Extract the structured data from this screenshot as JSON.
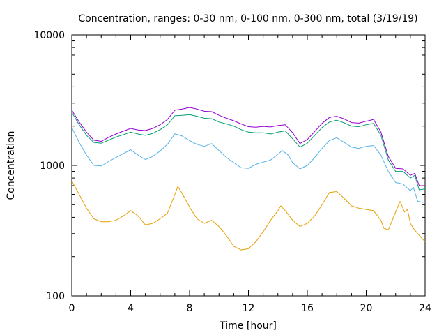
{
  "chart_data": {
    "type": "line",
    "title": "Concentration, ranges: 0-30 nm, 0-100 nm, 0-300 nm, total (3/19/19)",
    "xlabel": "Time [hour]",
    "ylabel": "Concentration",
    "xlim": [
      0,
      24
    ],
    "ylim": [
      100,
      10000
    ],
    "yscale": "log",
    "grid": false,
    "legend": "none",
    "x_ticks": [
      0,
      4,
      8,
      12,
      16,
      20,
      24
    ],
    "x_tick_labels": [
      "0",
      "4",
      "8",
      "12",
      "16",
      "20",
      "24"
    ],
    "y_ticks": [
      100,
      1000,
      10000
    ],
    "y_tick_labels": [
      "100",
      "1000",
      "10000"
    ],
    "series": [
      {
        "color": "#e69f00",
        "points": [
          [
            0,
            760
          ],
          [
            0.5,
            600
          ],
          [
            1,
            470
          ],
          [
            1.5,
            390
          ],
          [
            2,
            370
          ],
          [
            2.5,
            370
          ],
          [
            3,
            380
          ],
          [
            3.5,
            410
          ],
          [
            4,
            450
          ],
          [
            4.5,
            410
          ],
          [
            5,
            350
          ],
          [
            5.5,
            360
          ],
          [
            6,
            390
          ],
          [
            6.5,
            430
          ],
          [
            7,
            600
          ],
          [
            7.2,
            690
          ],
          [
            7.5,
            610
          ],
          [
            8,
            480
          ],
          [
            8.5,
            390
          ],
          [
            9,
            360
          ],
          [
            9.5,
            380
          ],
          [
            10,
            340
          ],
          [
            10.5,
            290
          ],
          [
            11,
            240
          ],
          [
            11.5,
            225
          ],
          [
            12,
            230
          ],
          [
            12.5,
            260
          ],
          [
            13,
            310
          ],
          [
            13.5,
            380
          ],
          [
            14,
            450
          ],
          [
            14.2,
            490
          ],
          [
            14.5,
            450
          ],
          [
            15,
            380
          ],
          [
            15.5,
            340
          ],
          [
            16,
            360
          ],
          [
            16.5,
            410
          ],
          [
            17,
            500
          ],
          [
            17.5,
            620
          ],
          [
            18,
            630
          ],
          [
            18.5,
            560
          ],
          [
            19,
            490
          ],
          [
            19.5,
            470
          ],
          [
            20,
            460
          ],
          [
            20.5,
            450
          ],
          [
            21,
            380
          ],
          [
            21.2,
            330
          ],
          [
            21.5,
            320
          ],
          [
            22,
            440
          ],
          [
            22.3,
            530
          ],
          [
            22.6,
            440
          ],
          [
            22.8,
            460
          ],
          [
            23,
            360
          ],
          [
            23.2,
            330
          ],
          [
            23.5,
            300
          ],
          [
            24,
            260
          ]
        ]
      },
      {
        "color": "#56b4e9",
        "points": [
          [
            0,
            1950
          ],
          [
            0.5,
            1500
          ],
          [
            1,
            1200
          ],
          [
            1.5,
            1000
          ],
          [
            2,
            990
          ],
          [
            2.5,
            1070
          ],
          [
            3,
            1150
          ],
          [
            3.5,
            1230
          ],
          [
            4,
            1320
          ],
          [
            4.5,
            1200
          ],
          [
            5,
            1110
          ],
          [
            5.5,
            1170
          ],
          [
            6,
            1290
          ],
          [
            6.5,
            1450
          ],
          [
            7,
            1750
          ],
          [
            7.5,
            1680
          ],
          [
            8,
            1550
          ],
          [
            8.5,
            1450
          ],
          [
            9,
            1400
          ],
          [
            9.5,
            1470
          ],
          [
            10,
            1300
          ],
          [
            10.5,
            1150
          ],
          [
            11,
            1050
          ],
          [
            11.5,
            960
          ],
          [
            12,
            950
          ],
          [
            12.5,
            1020
          ],
          [
            13,
            1060
          ],
          [
            13.5,
            1100
          ],
          [
            14,
            1220
          ],
          [
            14.3,
            1300
          ],
          [
            14.7,
            1200
          ],
          [
            15,
            1050
          ],
          [
            15.5,
            940
          ],
          [
            16,
            1000
          ],
          [
            16.5,
            1150
          ],
          [
            17,
            1350
          ],
          [
            17.5,
            1550
          ],
          [
            18,
            1630
          ],
          [
            18.5,
            1500
          ],
          [
            19,
            1380
          ],
          [
            19.5,
            1350
          ],
          [
            20,
            1400
          ],
          [
            20.5,
            1420
          ],
          [
            21,
            1200
          ],
          [
            21.5,
            900
          ],
          [
            22,
            740
          ],
          [
            22.5,
            720
          ],
          [
            23,
            640
          ],
          [
            23.2,
            680
          ],
          [
            23.5,
            530
          ],
          [
            24,
            520
          ]
        ]
      },
      {
        "color": "#009e73",
        "points": [
          [
            0,
            2550
          ],
          [
            0.5,
            2050
          ],
          [
            1,
            1700
          ],
          [
            1.5,
            1500
          ],
          [
            2,
            1480
          ],
          [
            2.5,
            1560
          ],
          [
            3,
            1650
          ],
          [
            3.5,
            1720
          ],
          [
            4,
            1800
          ],
          [
            4.5,
            1740
          ],
          [
            5,
            1700
          ],
          [
            5.5,
            1760
          ],
          [
            6,
            1880
          ],
          [
            6.5,
            2050
          ],
          [
            7,
            2400
          ],
          [
            7.5,
            2420
          ],
          [
            8,
            2450
          ],
          [
            8.5,
            2380
          ],
          [
            9,
            2300
          ],
          [
            9.5,
            2280
          ],
          [
            10,
            2150
          ],
          [
            10.5,
            2080
          ],
          [
            11,
            2000
          ],
          [
            11.5,
            1880
          ],
          [
            12,
            1800
          ],
          [
            12.5,
            1780
          ],
          [
            13,
            1780
          ],
          [
            13.5,
            1740
          ],
          [
            14,
            1800
          ],
          [
            14.5,
            1840
          ],
          [
            15,
            1600
          ],
          [
            15.5,
            1380
          ],
          [
            16,
            1480
          ],
          [
            16.5,
            1700
          ],
          [
            17,
            1950
          ],
          [
            17.5,
            2150
          ],
          [
            18,
            2220
          ],
          [
            18.5,
            2120
          ],
          [
            19,
            2000
          ],
          [
            19.5,
            1980
          ],
          [
            20,
            2050
          ],
          [
            20.5,
            2100
          ],
          [
            21,
            1700
          ],
          [
            21.5,
            1100
          ],
          [
            22,
            900
          ],
          [
            22.5,
            900
          ],
          [
            23,
            800
          ],
          [
            23.3,
            840
          ],
          [
            23.6,
            650
          ],
          [
            24,
            660
          ]
        ]
      },
      {
        "color": "#9400d3",
        "points": [
          [
            0,
            2650
          ],
          [
            0.5,
            2150
          ],
          [
            1,
            1800
          ],
          [
            1.5,
            1560
          ],
          [
            2,
            1530
          ],
          [
            2.5,
            1640
          ],
          [
            3,
            1740
          ],
          [
            3.5,
            1830
          ],
          [
            4,
            1920
          ],
          [
            4.5,
            1870
          ],
          [
            5,
            1850
          ],
          [
            5.5,
            1920
          ],
          [
            6,
            2050
          ],
          [
            6.5,
            2250
          ],
          [
            7,
            2650
          ],
          [
            7.5,
            2700
          ],
          [
            8,
            2780
          ],
          [
            8.5,
            2700
          ],
          [
            9,
            2600
          ],
          [
            9.5,
            2580
          ],
          [
            10,
            2420
          ],
          [
            10.5,
            2300
          ],
          [
            11,
            2200
          ],
          [
            11.5,
            2080
          ],
          [
            12,
            1980
          ],
          [
            12.5,
            1960
          ],
          [
            13,
            1990
          ],
          [
            13.5,
            1970
          ],
          [
            14,
            2020
          ],
          [
            14.5,
            2050
          ],
          [
            15,
            1780
          ],
          [
            15.5,
            1470
          ],
          [
            16,
            1580
          ],
          [
            16.5,
            1820
          ],
          [
            17,
            2100
          ],
          [
            17.5,
            2330
          ],
          [
            18,
            2380
          ],
          [
            18.5,
            2270
          ],
          [
            19,
            2130
          ],
          [
            19.5,
            2110
          ],
          [
            20,
            2180
          ],
          [
            20.5,
            2250
          ],
          [
            21,
            1800
          ],
          [
            21.5,
            1170
          ],
          [
            22,
            950
          ],
          [
            22.5,
            940
          ],
          [
            23,
            840
          ],
          [
            23.3,
            870
          ],
          [
            23.6,
            700
          ],
          [
            24,
            700
          ]
        ]
      }
    ]
  }
}
